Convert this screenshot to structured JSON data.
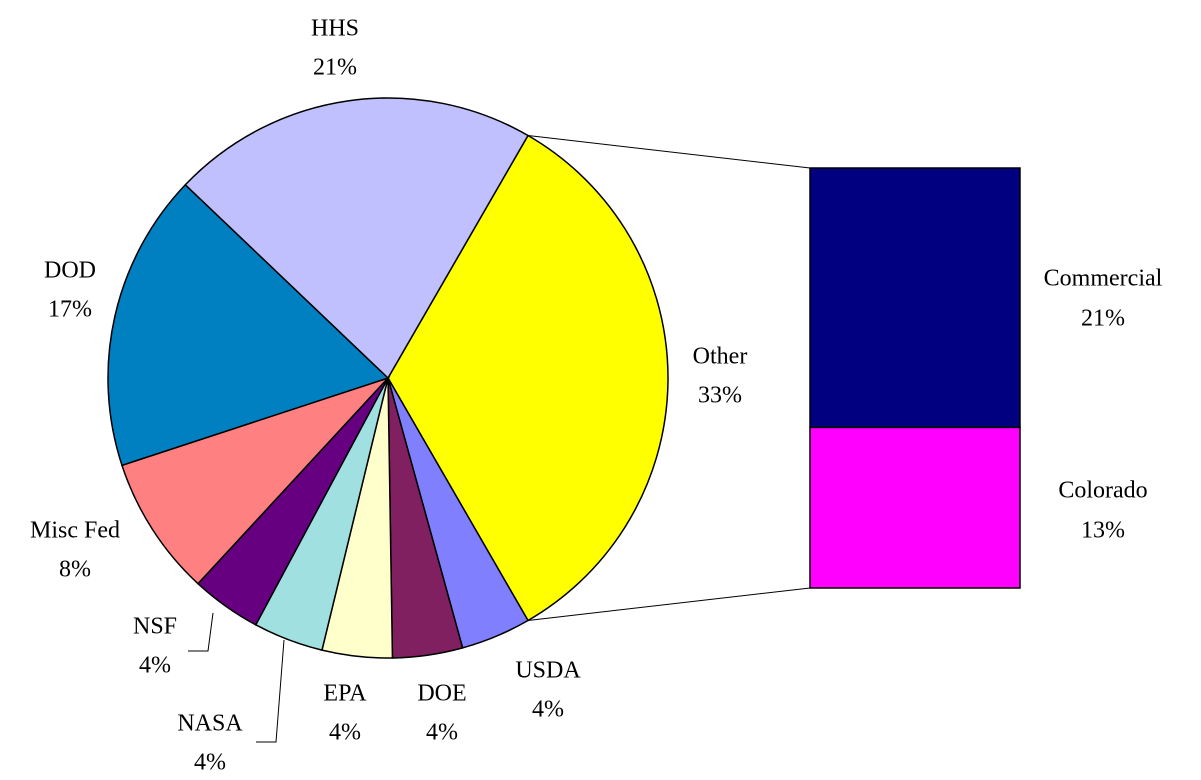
{
  "chart_data": {
    "type": "pie-of-bar",
    "categories": [
      "Other",
      "USDA",
      "DOE",
      "EPA",
      "NASA",
      "NSF",
      "Misc Fed",
      "DOD",
      "HHS"
    ],
    "values": [
      33,
      4,
      4,
      4,
      4,
      4,
      8,
      17,
      21
    ],
    "value_labels": [
      "33%",
      "4%",
      "4%",
      "4%",
      "4%",
      "4%",
      "8%",
      "17%",
      "21%"
    ],
    "colors": [
      "#ffff00",
      "#8080ff",
      "#802060",
      "#ffffcc",
      "#a0e0e0",
      "#660080",
      "#ff8080",
      "#0080c0",
      "#c0c0ff"
    ],
    "bar": {
      "categories": [
        "Commercial",
        "Colorado"
      ],
      "values": [
        21,
        13
      ],
      "value_labels": [
        "21%",
        "13%"
      ],
      "colors": [
        "#000080",
        "#ff00ff"
      ]
    }
  }
}
